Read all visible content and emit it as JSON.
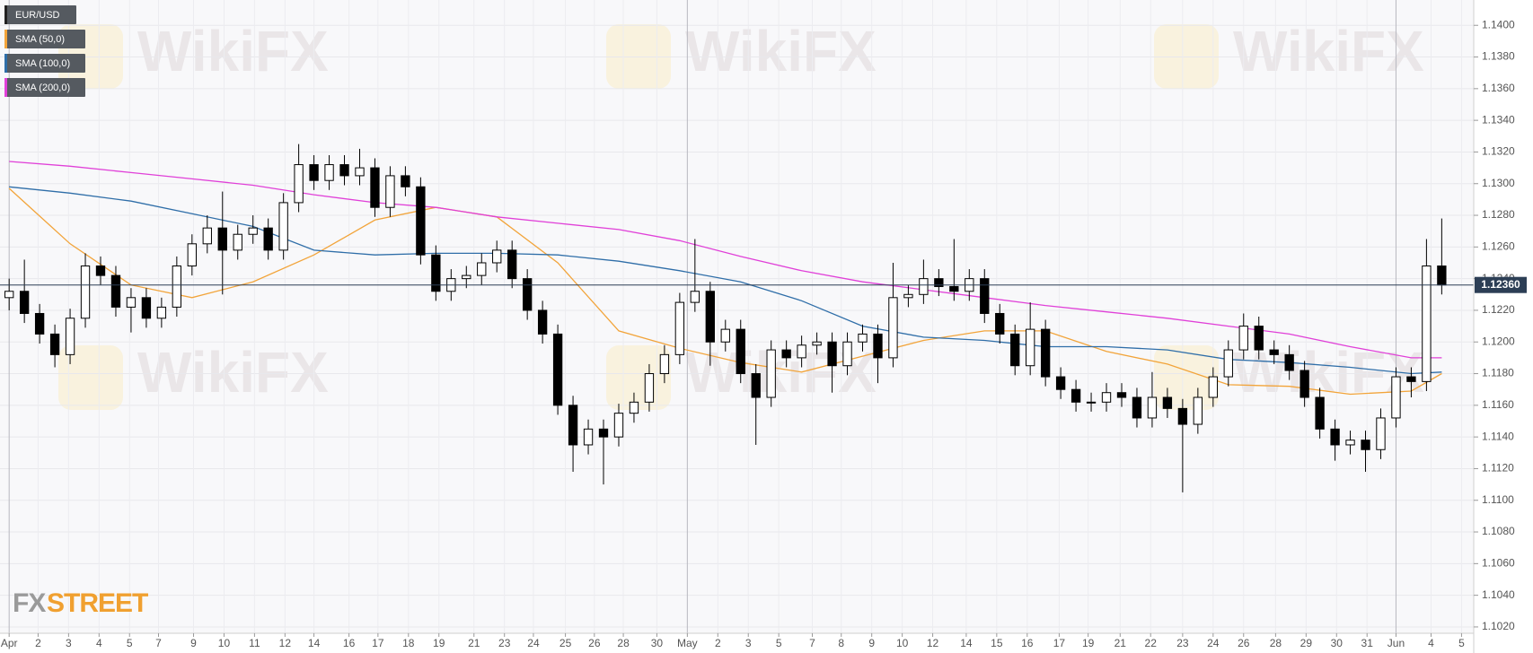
{
  "chart_data": {
    "type": "candlestick",
    "symbol": "EUR/USD",
    "up_color": "#ffffff",
    "down_color": "#000000",
    "x": [
      0,
      1,
      2,
      3,
      4,
      5,
      6,
      7,
      8,
      9,
      10,
      11,
      12,
      13,
      14,
      15,
      16,
      17,
      18,
      19,
      20,
      21,
      22,
      23,
      24,
      25,
      26,
      27,
      28,
      29,
      30,
      31,
      32,
      33,
      34,
      35,
      36,
      37,
      38,
      39,
      40,
      41,
      42,
      43,
      44,
      45,
      46,
      47,
      48,
      49,
      50,
      51,
      52,
      53,
      54,
      55,
      56,
      57,
      58,
      59,
      60,
      61,
      62,
      63,
      64,
      65,
      66,
      67,
      68,
      69,
      70,
      71,
      72,
      73,
      74,
      75,
      76,
      77,
      78,
      79,
      80,
      81,
      82,
      83,
      84,
      85,
      86,
      87,
      88,
      89,
      90,
      91,
      92,
      93,
      94
    ],
    "open": [
      1.1228,
      1.1232,
      1.1218,
      1.1205,
      1.1192,
      1.1215,
      1.1248,
      1.1242,
      1.1222,
      1.1228,
      1.1215,
      1.1222,
      1.1248,
      1.1262,
      1.1272,
      1.1258,
      1.1268,
      1.1272,
      1.1258,
      1.1288,
      1.1312,
      1.1302,
      1.1312,
      1.1305,
      1.131,
      1.1285,
      1.1305,
      1.1298,
      1.1255,
      1.1232,
      1.124,
      1.1242,
      1.125,
      1.1258,
      1.124,
      1.122,
      1.1205,
      1.116,
      1.1135,
      1.1145,
      1.114,
      1.1155,
      1.1162,
      1.118,
      1.1192,
      1.1225,
      1.1232,
      1.12,
      1.1208,
      1.118,
      1.1165,
      1.1195,
      1.119,
      1.1198,
      1.12,
      1.1185,
      1.12,
      1.1205,
      1.119,
      1.1228,
      1.123,
      1.124,
      1.1235,
      1.1232,
      1.124,
      1.1218,
      1.1205,
      1.1185,
      1.1208,
      1.1178,
      1.117,
      1.1162,
      1.1162,
      1.1168,
      1.1165,
      1.1152,
      1.1165,
      1.1158,
      1.1148,
      1.1165,
      1.1178,
      1.1195,
      1.121,
      1.1195,
      1.1192,
      1.1182,
      1.1165,
      1.1145,
      1.1135,
      1.1138,
      1.1132,
      1.1152,
      1.1178,
      1.1175,
      1.1248
    ],
    "high": [
      1.124,
      1.1252,
      1.1224,
      1.1211,
      1.1221,
      1.1256,
      1.1254,
      1.1248,
      1.1234,
      1.1234,
      1.1228,
      1.1254,
      1.1268,
      1.128,
      1.1295,
      1.1274,
      1.128,
      1.1278,
      1.1294,
      1.1325,
      1.1318,
      1.1318,
      1.1318,
      1.1322,
      1.1316,
      1.1311,
      1.1311,
      1.1304,
      1.1261,
      1.1246,
      1.1248,
      1.1256,
      1.1264,
      1.1264,
      1.1246,
      1.1226,
      1.1211,
      1.1166,
      1.1151,
      1.1151,
      1.1161,
      1.1168,
      1.1186,
      1.1198,
      1.1231,
      1.1265,
      1.1238,
      1.1214,
      1.1214,
      1.1186,
      1.1201,
      1.1201,
      1.1204,
      1.1206,
      1.1206,
      1.1206,
      1.1211,
      1.1211,
      1.125,
      1.1236,
      1.1252,
      1.1246,
      1.1265,
      1.1246,
      1.1246,
      1.1224,
      1.1211,
      1.1225,
      1.1214,
      1.1184,
      1.1176,
      1.1168,
      1.1174,
      1.1174,
      1.1171,
      1.1181,
      1.1171,
      1.1164,
      1.1171,
      1.1184,
      1.1201,
      1.1218,
      1.1216,
      1.1201,
      1.1198,
      1.1188,
      1.1171,
      1.1151,
      1.1144,
      1.1144,
      1.1158,
      1.1184,
      1.1184,
      1.1265,
      1.1278
    ],
    "low": [
      1.122,
      1.1212,
      1.1199,
      1.1184,
      1.1186,
      1.1209,
      1.1236,
      1.1216,
      1.1206,
      1.1209,
      1.1209,
      1.1216,
      1.1242,
      1.1256,
      1.123,
      1.1252,
      1.1262,
      1.1252,
      1.1252,
      1.1282,
      1.1296,
      1.1296,
      1.1299,
      1.1299,
      1.1279,
      1.1279,
      1.1292,
      1.1249,
      1.1226,
      1.1226,
      1.1234,
      1.1236,
      1.1244,
      1.1234,
      1.1214,
      1.1199,
      1.1154,
      1.1118,
      1.1129,
      1.111,
      1.1134,
      1.1149,
      1.1156,
      1.1174,
      1.1186,
      1.1219,
      1.1185,
      1.1194,
      1.1174,
      1.1135,
      1.1159,
      1.1184,
      1.1184,
      1.1192,
      1.1168,
      1.1179,
      1.1194,
      1.1174,
      1.1184,
      1.1222,
      1.1224,
      1.1229,
      1.1226,
      1.1226,
      1.1212,
      1.1199,
      1.1179,
      1.1179,
      1.1172,
      1.1164,
      1.1156,
      1.1156,
      1.1156,
      1.1159,
      1.1146,
      1.1146,
      1.1152,
      1.1105,
      1.1142,
      1.1159,
      1.1172,
      1.1189,
      1.1189,
      1.1186,
      1.1176,
      1.1159,
      1.1139,
      1.1125,
      1.1129,
      1.1118,
      1.1126,
      1.1146,
      1.1165,
      1.1169,
      1.123
    ],
    "close": [
      1.1232,
      1.1218,
      1.1205,
      1.1192,
      1.1215,
      1.1248,
      1.1242,
      1.1222,
      1.1228,
      1.1215,
      1.1222,
      1.1248,
      1.1262,
      1.1272,
      1.1258,
      1.1268,
      1.1272,
      1.1258,
      1.1288,
      1.1312,
      1.1302,
      1.1312,
      1.1305,
      1.131,
      1.1285,
      1.1305,
      1.1298,
      1.1255,
      1.1232,
      1.124,
      1.1242,
      1.125,
      1.1258,
      1.124,
      1.122,
      1.1205,
      1.116,
      1.1135,
      1.1145,
      1.114,
      1.1155,
      1.1162,
      1.118,
      1.1192,
      1.1225,
      1.1232,
      1.12,
      1.1208,
      1.118,
      1.1165,
      1.1195,
      1.119,
      1.1198,
      1.12,
      1.1185,
      1.12,
      1.1205,
      1.119,
      1.1228,
      1.123,
      1.124,
      1.1235,
      1.1232,
      1.124,
      1.1218,
      1.1205,
      1.1185,
      1.1208,
      1.1178,
      1.117,
      1.1162,
      1.1162,
      1.1168,
      1.1165,
      1.1152,
      1.1165,
      1.1158,
      1.1148,
      1.1165,
      1.1178,
      1.1195,
      1.121,
      1.1195,
      1.1192,
      1.1182,
      1.1165,
      1.1145,
      1.1135,
      1.1138,
      1.1132,
      1.1152,
      1.1178,
      1.1175,
      1.1248,
      1.1236
    ],
    "series": [
      {
        "name": "SMA (50,0)",
        "color": "#f2a43a",
        "x": [
          0,
          4,
          8,
          12,
          16,
          20,
          24,
          28,
          32,
          36,
          40,
          44,
          48,
          52,
          56,
          60,
          64,
          68,
          72,
          76,
          80,
          84,
          88,
          92,
          94
        ],
        "values": [
          1.1297,
          1.1262,
          1.1236,
          1.1228,
          1.1238,
          1.1255,
          1.1277,
          1.1285,
          1.1279,
          1.125,
          1.1207,
          1.1196,
          1.1187,
          1.1181,
          1.1191,
          1.1201,
          1.1207,
          1.1207,
          1.1194,
          1.1186,
          1.1173,
          1.1172,
          1.1167,
          1.1169,
          1.118
        ]
      },
      {
        "name": "SMA (100,0)",
        "color": "#2f6ea8",
        "x": [
          0,
          4,
          8,
          12,
          16,
          20,
          24,
          28,
          32,
          36,
          40,
          44,
          48,
          52,
          56,
          60,
          64,
          68,
          72,
          76,
          80,
          84,
          88,
          92,
          94
        ],
        "values": [
          1.1298,
          1.1294,
          1.1289,
          1.1281,
          1.1273,
          1.1258,
          1.1255,
          1.1256,
          1.1256,
          1.1255,
          1.1251,
          1.1245,
          1.1238,
          1.1226,
          1.121,
          1.1203,
          1.1201,
          1.1197,
          1.1197,
          1.1195,
          1.1189,
          1.1187,
          1.1184,
          1.118,
          1.1181
        ]
      },
      {
        "name": "SMA (200,0)",
        "color": "#e040d8",
        "x": [
          0,
          4,
          8,
          12,
          16,
          20,
          24,
          28,
          32,
          36,
          40,
          44,
          48,
          52,
          56,
          60,
          64,
          68,
          72,
          76,
          80,
          84,
          88,
          92,
          94
        ],
        "values": [
          1.1314,
          1.1311,
          1.1307,
          1.1303,
          1.1299,
          1.1293,
          1.1288,
          1.1285,
          1.1279,
          1.1275,
          1.1271,
          1.1264,
          1.1254,
          1.1245,
          1.1238,
          1.1233,
          1.1228,
          1.1223,
          1.1219,
          1.1215,
          1.121,
          1.1205,
          1.1197,
          1.119,
          1.119
        ]
      }
    ],
    "last_price": {
      "value": 1.1236,
      "label": "1.12360"
    },
    "xlim": [
      -0.6,
      96.1
    ],
    "ylim": [
      1.1016,
      1.1416
    ],
    "yticks": [
      {
        "value": 1.102,
        "label": "1.1020"
      },
      {
        "value": 1.104,
        "label": "1.1040"
      },
      {
        "value": 1.106,
        "label": "1.1060"
      },
      {
        "value": 1.108,
        "label": "1.1080"
      },
      {
        "value": 1.11,
        "label": "1.1100"
      },
      {
        "value": 1.112,
        "label": "1.1120"
      },
      {
        "value": 1.114,
        "label": "1.1140"
      },
      {
        "value": 1.116,
        "label": "1.1160"
      },
      {
        "value": 1.118,
        "label": "1.1180"
      },
      {
        "value": 1.12,
        "label": "1.1200"
      },
      {
        "value": 1.122,
        "label": "1.1220"
      },
      {
        "value": 1.124,
        "label": "1.1240"
      },
      {
        "value": 1.126,
        "label": "1.1260"
      },
      {
        "value": 1.128,
        "label": "1.1280"
      },
      {
        "value": 1.13,
        "label": "1.1300"
      },
      {
        "value": 1.132,
        "label": "1.1320"
      },
      {
        "value": 1.134,
        "label": "1.1340"
      },
      {
        "value": 1.136,
        "label": "1.1360"
      },
      {
        "value": 1.138,
        "label": "1.1380"
      },
      {
        "value": 1.14,
        "label": "1.1400"
      }
    ],
    "xticks": [
      {
        "value": 0,
        "label": "Apr"
      },
      {
        "value": 1.9,
        "label": "2"
      },
      {
        "value": 3.9,
        "label": "3"
      },
      {
        "value": 5.9,
        "label": "4"
      },
      {
        "value": 7.9,
        "label": "5"
      },
      {
        "value": 9.8,
        "label": "7"
      },
      {
        "value": 12.1,
        "label": "9"
      },
      {
        "value": 14.1,
        "label": "10"
      },
      {
        "value": 16.1,
        "label": "11"
      },
      {
        "value": 18.1,
        "label": "12"
      },
      {
        "value": 20,
        "label": "14"
      },
      {
        "value": 22.3,
        "label": "16"
      },
      {
        "value": 24.2,
        "label": "17"
      },
      {
        "value": 26.2,
        "label": "18"
      },
      {
        "value": 28.2,
        "label": "19"
      },
      {
        "value": 30.5,
        "label": "21"
      },
      {
        "value": 32.5,
        "label": "23"
      },
      {
        "value": 34.4,
        "label": "24"
      },
      {
        "value": 36.5,
        "label": "25"
      },
      {
        "value": 38.4,
        "label": "26"
      },
      {
        "value": 40.3,
        "label": "28"
      },
      {
        "value": 42.5,
        "label": "30"
      },
      {
        "value": 44.5,
        "label": "May"
      },
      {
        "value": 46.5,
        "label": "2"
      },
      {
        "value": 48.5,
        "label": "3"
      },
      {
        "value": 50.5,
        "label": "5"
      },
      {
        "value": 52.7,
        "label": "7"
      },
      {
        "value": 54.6,
        "label": "8"
      },
      {
        "value": 56.6,
        "label": "9"
      },
      {
        "value": 58.6,
        "label": "10"
      },
      {
        "value": 60.6,
        "label": "12"
      },
      {
        "value": 62.8,
        "label": "14"
      },
      {
        "value": 64.8,
        "label": "15"
      },
      {
        "value": 66.8,
        "label": "16"
      },
      {
        "value": 68.9,
        "label": "17"
      },
      {
        "value": 70.8,
        "label": "19"
      },
      {
        "value": 72.9,
        "label": "21"
      },
      {
        "value": 74.9,
        "label": "22"
      },
      {
        "value": 77,
        "label": "23"
      },
      {
        "value": 79,
        "label": "24"
      },
      {
        "value": 81,
        "label": "26"
      },
      {
        "value": 83.1,
        "label": "28"
      },
      {
        "value": 85.1,
        "label": "29"
      },
      {
        "value": 87.1,
        "label": "30"
      },
      {
        "value": 89.1,
        "label": "31"
      },
      {
        "value": 91,
        "label": "Jun"
      },
      {
        "value": 93.3,
        "label": "4"
      },
      {
        "value": 95.3,
        "label": "5"
      }
    ],
    "grid": true,
    "watermark": "WikiFX",
    "logo": [
      "FX",
      "STREET"
    ]
  }
}
